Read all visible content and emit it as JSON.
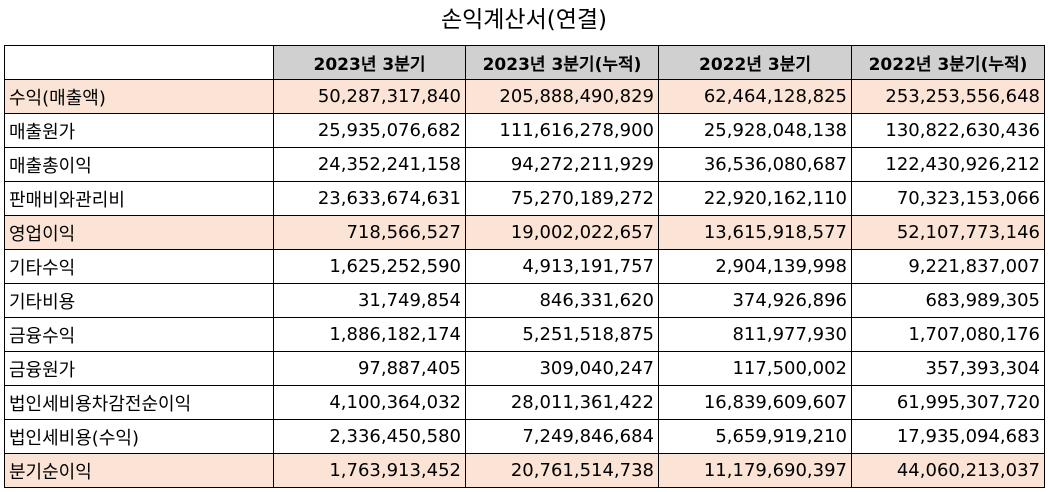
{
  "title": "손익계산서(연결)",
  "header": {
    "blank": "",
    "col1": "2023년 3분기",
    "col2": "2023년 3분기(누적)",
    "col3": "2022년 3분기",
    "col4": "2022년 3분기(누적)"
  },
  "highlight_color": "#fbe4d5",
  "header_color": "#d0d0d0",
  "rows": [
    {
      "label": "수익(매출액)",
      "v1": "50,287,317,840",
      "v2": "205,888,490,829",
      "v3": "62,464,128,825",
      "v4": "253,253,556,648",
      "highlight": true
    },
    {
      "label": "매출원가",
      "v1": "25,935,076,682",
      "v2": "111,616,278,900",
      "v3": "25,928,048,138",
      "v4": "130,822,630,436",
      "highlight": false
    },
    {
      "label": "매출총이익",
      "v1": "24,352,241,158",
      "v2": "94,272,211,929",
      "v3": "36,536,080,687",
      "v4": "122,430,926,212",
      "highlight": false
    },
    {
      "label": "판매비와관리비",
      "v1": "23,633,674,631",
      "v2": "75,270,189,272",
      "v3": "22,920,162,110",
      "v4": "70,323,153,066",
      "highlight": false
    },
    {
      "label": "영업이익",
      "v1": "718,566,527",
      "v2": "19,002,022,657",
      "v3": "13,615,918,577",
      "v4": "52,107,773,146",
      "highlight": true
    },
    {
      "label": "기타수익",
      "v1": "1,625,252,590",
      "v2": "4,913,191,757",
      "v3": "2,904,139,998",
      "v4": "9,221,837,007",
      "highlight": false
    },
    {
      "label": "기타비용",
      "v1": "31,749,854",
      "v2": "846,331,620",
      "v3": "374,926,896",
      "v4": "683,989,305",
      "highlight": false
    },
    {
      "label": "금융수익",
      "v1": "1,886,182,174",
      "v2": "5,251,518,875",
      "v3": "811,977,930",
      "v4": "1,707,080,176",
      "highlight": false
    },
    {
      "label": "금융원가",
      "v1": "97,887,405",
      "v2": "309,040,247",
      "v3": "117,500,002",
      "v4": "357,393,304",
      "highlight": false
    },
    {
      "label": "법인세비용차감전순이익",
      "v1": "4,100,364,032",
      "v2": "28,011,361,422",
      "v3": "16,839,609,607",
      "v4": "61,995,307,720",
      "highlight": false
    },
    {
      "label": "법인세비용(수익)",
      "v1": "2,336,450,580",
      "v2": "7,249,846,684",
      "v3": "5,659,919,210",
      "v4": "17,935,094,683",
      "highlight": false
    },
    {
      "label": "분기순이익",
      "v1": "1,763,913,452",
      "v2": "20,761,514,738",
      "v3": "11,179,690,397",
      "v4": "44,060,213,037",
      "highlight": true
    }
  ]
}
